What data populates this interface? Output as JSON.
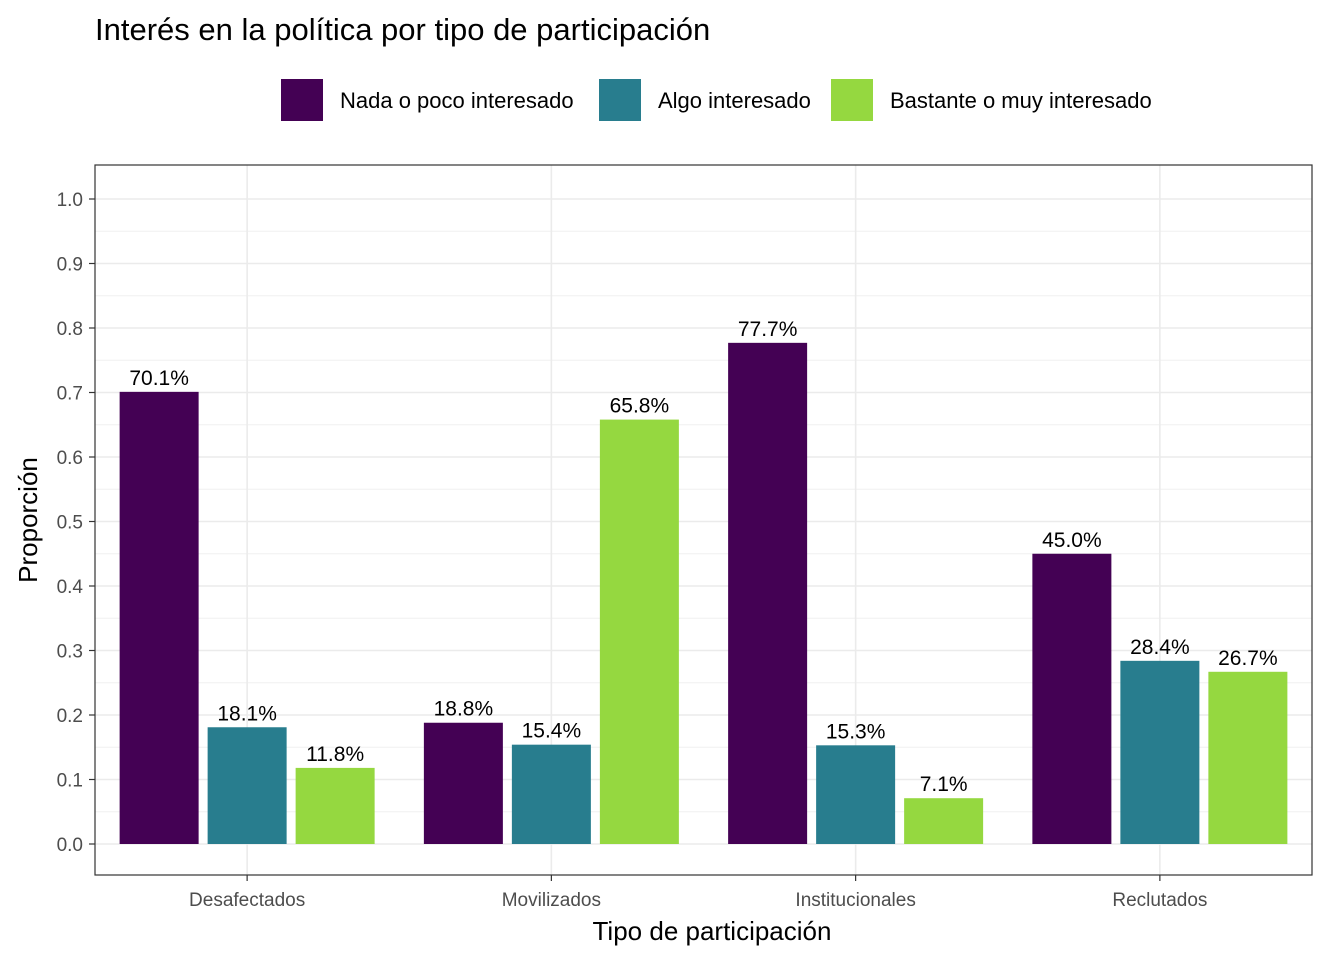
{
  "chart_data": {
    "type": "bar",
    "title": "Interés en la política por tipo de participación",
    "xlabel": "Tipo de participación",
    "ylabel": "Proporción",
    "categories": [
      "Desafectados",
      "Movilizados",
      "Institucionales",
      "Reclutados"
    ],
    "series": [
      {
        "name": "Nada o poco interesado",
        "color": "#440154",
        "values": [
          0.701,
          0.188,
          0.777,
          0.45
        ],
        "labels": [
          "70.1%",
          "18.8%",
          "77.7%",
          "45.0%"
        ]
      },
      {
        "name": "Algo interesado",
        "color": "#287d8e",
        "values": [
          0.181,
          0.154,
          0.153,
          0.284
        ],
        "labels": [
          "18.1%",
          "15.4%",
          "15.3%",
          "28.4%"
        ]
      },
      {
        "name": "Bastante o muy interesado",
        "color": "#95d840",
        "values": [
          0.118,
          0.658,
          0.071,
          0.267
        ],
        "labels": [
          "11.8%",
          "65.8%",
          "7.1%",
          "26.7%"
        ]
      }
    ],
    "ylim": [
      -0.05,
      1.05
    ],
    "yticks": [
      "0.0",
      "0.1",
      "0.2",
      "0.3",
      "0.4",
      "0.5",
      "0.6",
      "0.7",
      "0.8",
      "0.9",
      "1.0"
    ],
    "legend_position": "top",
    "grid": true
  }
}
